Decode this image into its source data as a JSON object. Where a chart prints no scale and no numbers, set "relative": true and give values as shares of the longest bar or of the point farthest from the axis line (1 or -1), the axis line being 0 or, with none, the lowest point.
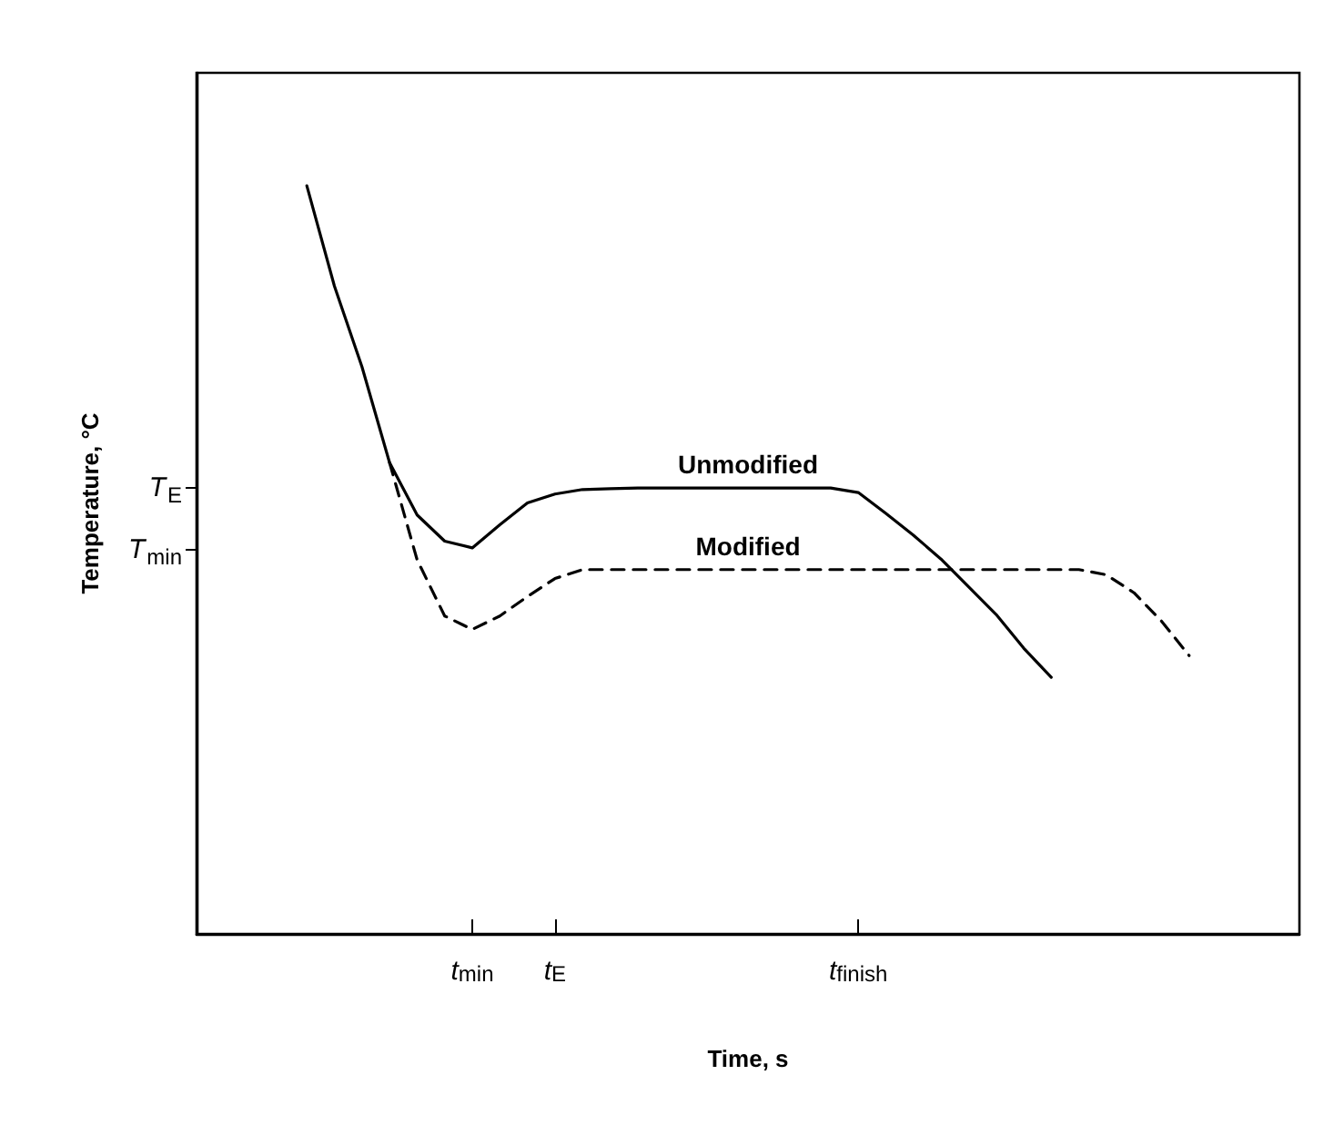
{
  "chart_data": {
    "type": "line",
    "relative": true,
    "xlabel": "Time, s",
    "ylabel": "Temperature, °C",
    "categories": [
      null,
      null,
      null,
      null,
      null,
      null,
      null,
      null,
      null,
      null,
      "t$_{min}$",
      null,
      null,
      "t$_{E}$",
      null,
      null,
      null,
      null,
      null,
      null,
      null,
      null,
      null,
      null,
      "t$_{finish}$",
      null,
      null,
      null,
      null,
      null,
      null,
      null,
      null,
      null,
      null,
      null,
      null,
      null,
      null,
      null,
      null
    ],
    "annotations": [
      "T$_{E}$",
      "T$_{min}$"
    ],
    "grid": false,
    "legend": false,
    "marker": "none",
    "series": [
      {
        "name": "Unmodified",
        "color": "#000000",
        "line_style": "solid",
        "values": [
          null,
          null,
          null,
          null,
          1.0,
          0.866,
          0.758,
          0.63,
          0.56,
          0.525,
          0.516,
          0.547,
          0.576,
          0.588,
          0.594,
          0.595,
          0.596,
          0.596,
          0.596,
          0.596,
          0.596,
          0.596,
          0.596,
          0.596,
          0.59,
          0.562,
          0.533,
          0.501,
          0.464,
          0.427,
          0.382,
          0.343,
          null,
          null,
          null,
          null,
          null,
          null,
          null,
          null,
          null
        ]
      },
      {
        "name": "Modified",
        "color": "#000000",
        "line_style": "dashed",
        "values": [
          null,
          null,
          null,
          null,
          null,
          null,
          null,
          0.63,
          0.5,
          0.425,
          0.407,
          0.425,
          0.451,
          0.475,
          0.487,
          0.487,
          0.487,
          0.487,
          0.487,
          0.487,
          0.487,
          0.487,
          0.487,
          0.487,
          0.487,
          0.487,
          0.487,
          0.487,
          0.487,
          0.487,
          0.487,
          0.487,
          0.487,
          0.48,
          0.456,
          0.418,
          0.372,
          null,
          null,
          null,
          null
        ]
      }
    ]
  }
}
